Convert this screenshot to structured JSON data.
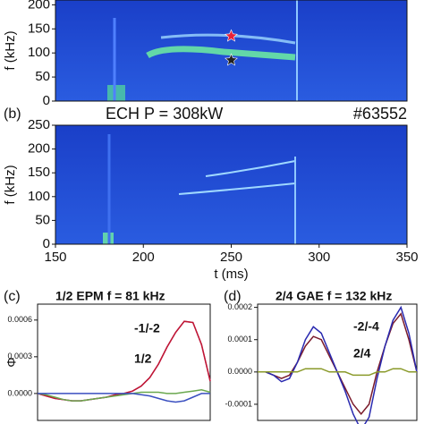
{
  "chart_data": [
    {
      "type": "spectrogram",
      "ylabel": "f (kHz)",
      "ylim": [
        0,
        210
      ],
      "yticks": [
        0,
        50,
        100,
        150,
        200
      ],
      "xlim": [
        150,
        350
      ],
      "markers": [
        {
          "x": 250,
          "y": 135,
          "color": "#e8213a"
        },
        {
          "x": 250,
          "y": 85,
          "color": "#222222"
        }
      ]
    },
    {
      "type": "spectrogram",
      "panel_label": "(b)",
      "title": "ECH P = 308kW",
      "annotation": "#63552",
      "ylabel": "f (kHz)",
      "xlabel": "t (ms)",
      "ylim": [
        0,
        250
      ],
      "yticks": [
        0,
        50,
        100,
        150,
        200,
        250
      ],
      "xlim": [
        150,
        350
      ],
      "xticks": [
        150,
        200,
        250,
        300,
        350
      ]
    },
    {
      "type": "line",
      "panel_label": "(c)",
      "title": "1/2 EPM f = 81 kHz",
      "ylabel": "Φ",
      "xlim": [
        0,
        20
      ],
      "ylim": [
        -0.00022,
        0.00073
      ],
      "yticks": [
        {
          "value": 0,
          "label": "0.0000"
        },
        {
          "value": 0.0003,
          "label": "0.0003"
        },
        {
          "value": 0.0006,
          "label": "0.0006"
        }
      ],
      "x": [
        0,
        1,
        2,
        3,
        4,
        5,
        6,
        7,
        8,
        9,
        10,
        11,
        12,
        13,
        14,
        15,
        16,
        17,
        18,
        19,
        20
      ],
      "series": [
        {
          "name": "-1/-2",
          "color": "#c03ad0",
          "values": [
            0,
            -2e-05,
            -4e-05,
            -5e-05,
            -6e-05,
            -6e-05,
            -5e-05,
            -4e-05,
            -3e-05,
            -1e-05,
            0,
            2e-05,
            6e-05,
            0.00013,
            0.00024,
            0.00038,
            0.0005,
            0.00059,
            0.00058,
            0.0004,
            0.0001
          ]
        },
        {
          "name": "1/2",
          "color": "#c0192e",
          "values": [
            0,
            -2e-05,
            -4e-05,
            -5e-05,
            -6e-05,
            -6e-05,
            -5e-05,
            -4e-05,
            -3e-05,
            -1e-05,
            0,
            2e-05,
            6e-05,
            0.00013,
            0.00024,
            0.00038,
            0.0005,
            0.00059,
            0.00058,
            0.0004,
            0.0001
          ]
        },
        {
          "color": "#6aa84f",
          "values": [
            0,
            -1e-05,
            -3e-05,
            -5e-05,
            -6e-05,
            -6e-05,
            -5e-05,
            -4e-05,
            -3e-05,
            -2e-05,
            -1e-05,
            0,
            1e-05,
            1e-05,
            1e-05,
            0,
            0,
            1e-05,
            2e-05,
            3e-05,
            1e-05
          ]
        },
        {
          "color": "#3a4fc0",
          "values": [
            0,
            0,
            0,
            0,
            0,
            0,
            0,
            0,
            0,
            0,
            0,
            0,
            -1e-05,
            -2e-05,
            -4e-05,
            -6e-05,
            -7e-05,
            -6e-05,
            -3e-05,
            0,
            0
          ]
        }
      ]
    },
    {
      "type": "line",
      "panel_label": "(d)",
      "title": "2/4 GAE f = 132 kHz",
      "xlim": [
        0,
        20
      ],
      "ylim": [
        -0.00015,
        0.00021
      ],
      "yticks": [
        {
          "value": -0.0001,
          "label": "-0.0001"
        },
        {
          "value": 0,
          "label": "0.0000"
        },
        {
          "value": 0.0001,
          "label": "0.0001"
        },
        {
          "value": 0.0002,
          "label": "0.0002"
        }
      ],
      "x": [
        0,
        1,
        2,
        3,
        4,
        5,
        6,
        7,
        8,
        9,
        10,
        11,
        12,
        13,
        14,
        15,
        16,
        17,
        18,
        19,
        20
      ],
      "series": [
        {
          "name": "-2/-4",
          "color": "#7a1a2a",
          "values": [
            0,
            0,
            -1e-05,
            -2e-05,
            -1e-05,
            3e-05,
            8e-05,
            0.00011,
            0.0001,
            5e-05,
            0,
            -5e-05,
            -0.0001,
            -0.00013,
            -0.0001,
            0,
            8e-05,
            0.00015,
            0.00018,
            0.0001,
            0
          ]
        },
        {
          "name": "2/4",
          "color": "#2a2ab0",
          "values": [
            0,
            0,
            -1e-05,
            -3e-05,
            -2e-05,
            3e-05,
            0.0001,
            0.00014,
            0.00012,
            6e-05,
            0,
            -6e-05,
            -0.00013,
            -0.00018,
            -0.00014,
            -2e-05,
            8e-05,
            0.00016,
            0.0002,
            0.00012,
            0
          ]
        },
        {
          "color": "#8a9a2a",
          "values": [
            0,
            0,
            0,
            0,
            0,
            0,
            1e-05,
            1e-05,
            1e-05,
            0,
            0,
            0,
            -1e-05,
            -1e-05,
            -1e-05,
            0,
            0,
            1e-05,
            1e-05,
            0,
            0
          ]
        }
      ]
    }
  ]
}
